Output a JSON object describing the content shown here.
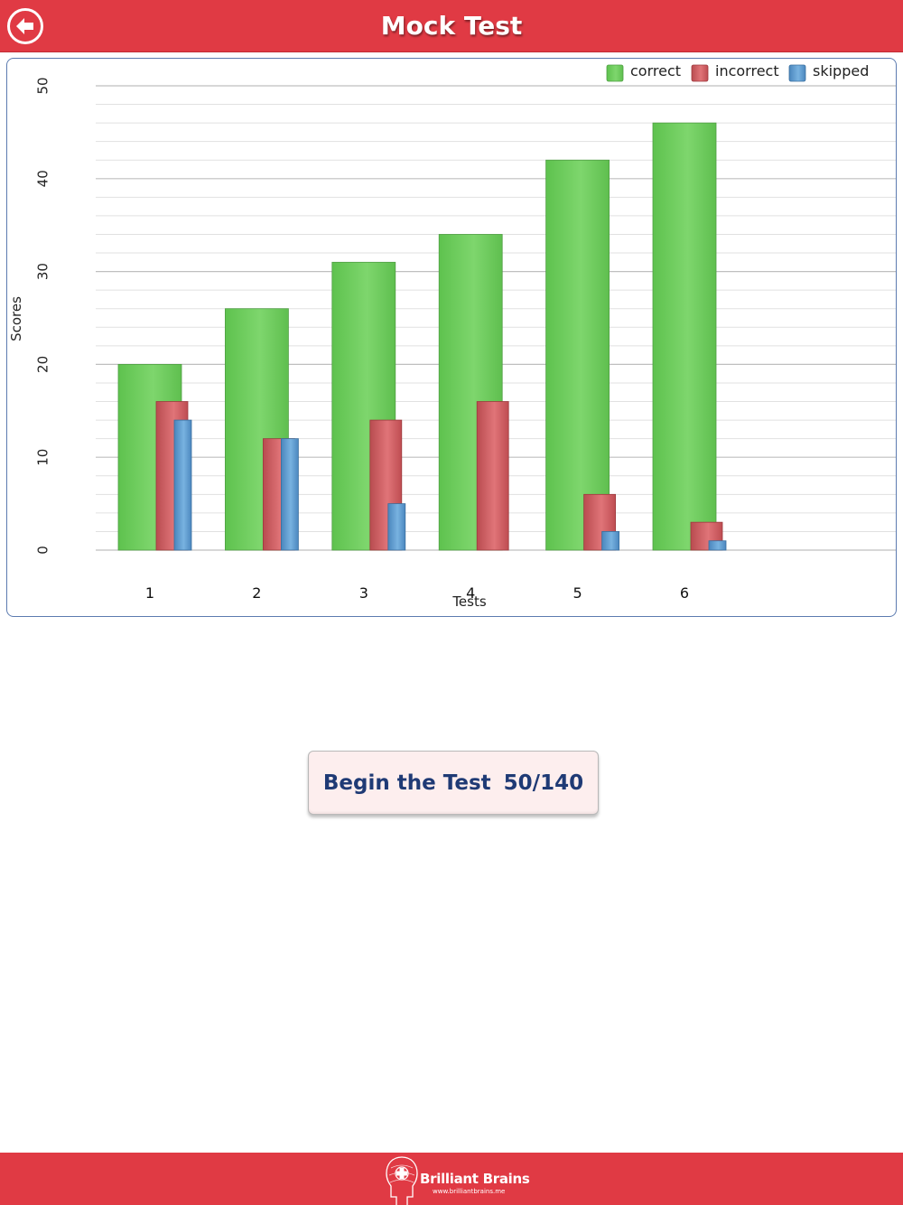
{
  "header": {
    "title": "Mock Test",
    "back_icon": "back-arrow-circle-icon"
  },
  "chart_data": {
    "type": "bar",
    "categories": [
      "1",
      "2",
      "3",
      "4",
      "5",
      "6"
    ],
    "series": [
      {
        "name": "correct",
        "color": "#6ccc5c",
        "values": [
          20,
          26,
          31,
          34,
          42,
          46
        ]
      },
      {
        "name": "incorrect",
        "color": "#cf5a5e",
        "values": [
          16,
          12,
          14,
          16,
          6,
          3
        ]
      },
      {
        "name": "skipped",
        "color": "#5a99cd",
        "values": [
          14,
          12,
          5,
          0,
          2,
          1
        ]
      }
    ],
    "xlabel": "Tests",
    "ylabel": "Scores",
    "ylim": [
      0,
      50
    ],
    "yticks": [
      0,
      10,
      20,
      30,
      40,
      50
    ],
    "grid": true,
    "legend": "top-right"
  },
  "main": {
    "begin_label": "Begin the Test",
    "begin_count": "50/140"
  },
  "footer": {
    "brand_name": "Brilliant Brains",
    "brand_url": "www.brilliantbrains.me",
    "logo_icon": "brain-head-logo-icon"
  },
  "colors": {
    "header_bg": "#e03a44",
    "button_text": "#1f3a75",
    "button_bg": "#fdeeee"
  }
}
